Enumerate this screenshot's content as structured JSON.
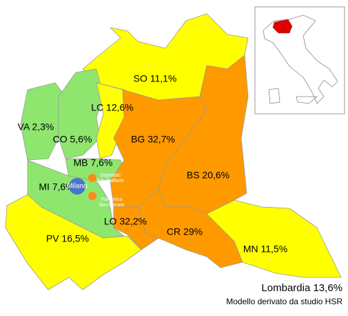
{
  "regions": [
    {
      "label": "SO 11,1%",
      "color": "#ffff00"
    },
    {
      "label": "VA 2,3%",
      "color": "#8ee66f"
    },
    {
      "label": "CO 5,6%",
      "color": "#8ee66f"
    },
    {
      "label": "LC 12,6%",
      "color": "#ffff00"
    },
    {
      "label": "MB 7,6%",
      "color": "#8ee66f"
    },
    {
      "label": "MI 7,6%",
      "color": "#8ee66f"
    },
    {
      "label": "BG 32,7%",
      "color": "#ff9900"
    },
    {
      "label": "BS 20,6%",
      "color": "#ff9900"
    },
    {
      "label": "LO 32,2%",
      "color": "#ff9900"
    },
    {
      "label": "CR 29%",
      "color": "#ff9900"
    },
    {
      "label": "MN 11,5%",
      "color": "#ffff00"
    },
    {
      "label": "PV 16,5%",
      "color": "#ffff00"
    }
  ],
  "places": {
    "city": "Milano",
    "hospital_1": [
      "Ospedale",
      "San Raffaele"
    ],
    "hospital_2": [
      "Policlinico",
      "San Donato"
    ]
  },
  "footer": {
    "total": "Lombardia 13,6%",
    "source": "Modello derivato da studio HSR"
  }
}
